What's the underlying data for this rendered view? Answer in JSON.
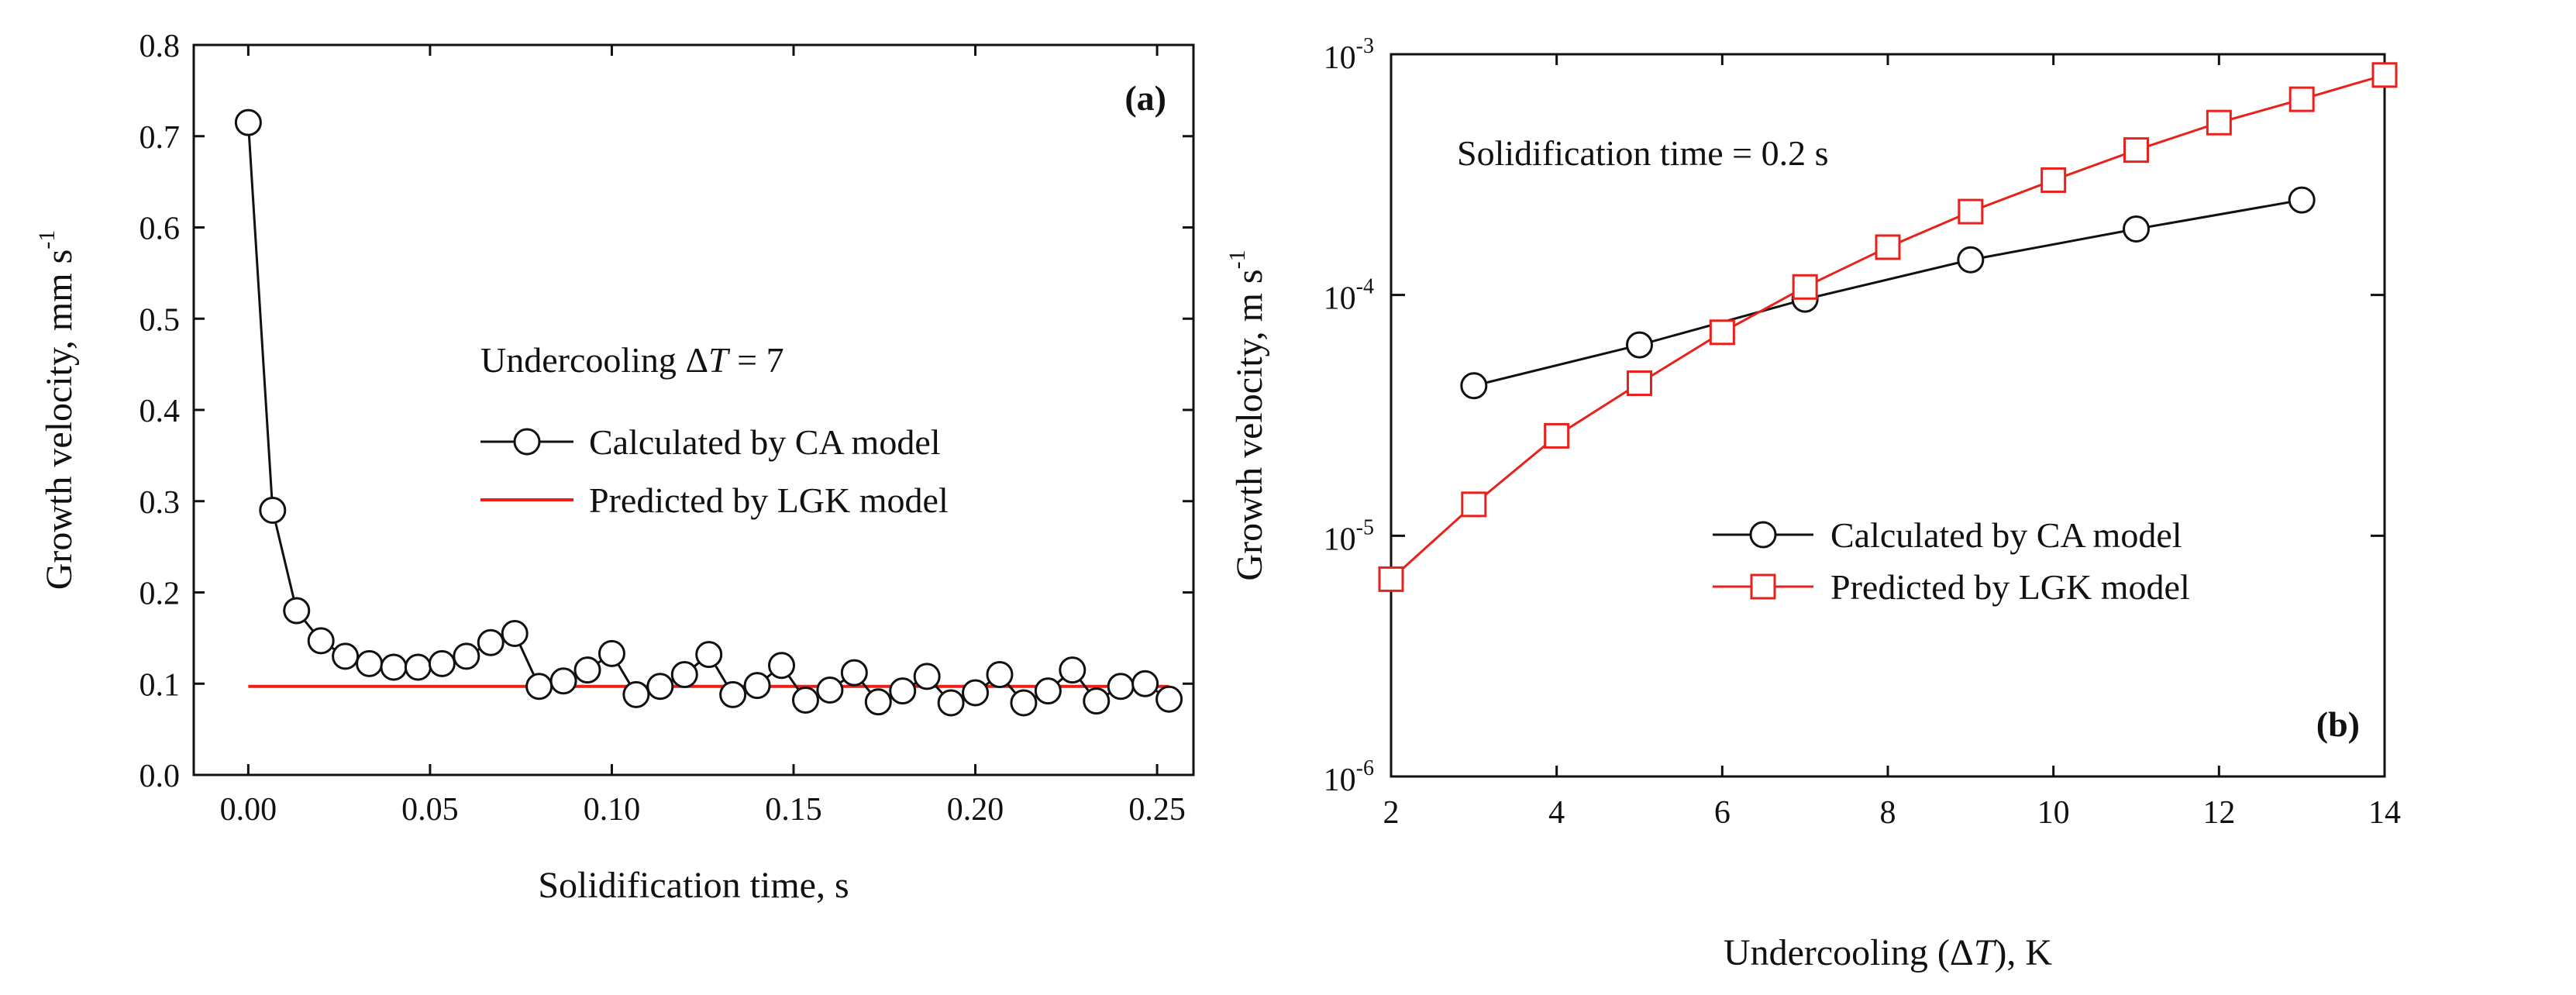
{
  "chart_data": [
    {
      "panel": "(a)",
      "type": "line",
      "xlabel": "Solidification time, s",
      "ylabel": "Growth velocity, mm s",
      "ylabel_sup": "-1",
      "xlim": [
        -0.015,
        0.26
      ],
      "ylim": [
        0.0,
        0.8
      ],
      "xticks": [
        0.0,
        0.05,
        0.1,
        0.15,
        0.2,
        0.25
      ],
      "xtick_labels": [
        "0.00",
        "0.05",
        "0.10",
        "0.15",
        "0.20",
        "0.25"
      ],
      "yticks": [
        0.0,
        0.1,
        0.2,
        0.3,
        0.4,
        0.5,
        0.6,
        0.7,
        0.8
      ],
      "ytick_labels": [
        "0.0",
        "0.1",
        "0.2",
        "0.3",
        "0.4",
        "0.5",
        "0.6",
        "0.7",
        "0.8"
      ],
      "annotation": {
        "prefix": "Undercooling ",
        "delta": "Δ",
        "var": "T",
        "suffix": " = 7"
      },
      "legend_position": "upper-middle",
      "grid": false,
      "series": [
        {
          "name": "Calculated by CA model",
          "color": "#111111",
          "marker": "circle",
          "x": [
            0.0,
            0.0067,
            0.0133,
            0.02,
            0.0267,
            0.0333,
            0.04,
            0.0467,
            0.0533,
            0.06,
            0.0667,
            0.0733,
            0.08,
            0.0867,
            0.0933,
            0.1,
            0.1067,
            0.1133,
            0.12,
            0.1267,
            0.1333,
            0.14,
            0.1467,
            0.1533,
            0.16,
            0.1667,
            0.1733,
            0.18,
            0.1867,
            0.1933,
            0.2,
            0.2067,
            0.2133,
            0.22,
            0.2267,
            0.2333,
            0.24,
            0.2467,
            0.2533
          ],
          "values": [
            0.715,
            0.29,
            0.18,
            0.147,
            0.13,
            0.122,
            0.118,
            0.118,
            0.122,
            0.13,
            0.145,
            0.155,
            0.097,
            0.103,
            0.115,
            0.133,
            0.088,
            0.097,
            0.11,
            0.132,
            0.088,
            0.098,
            0.12,
            0.082,
            0.093,
            0.112,
            0.08,
            0.092,
            0.108,
            0.079,
            0.09,
            0.11,
            0.079,
            0.092,
            0.115,
            0.081,
            0.097,
            0.1,
            0.083
          ]
        },
        {
          "name": "Predicted by LGK model",
          "color": "#e8211c",
          "marker": "none",
          "x": [
            0.0,
            0.2533
          ],
          "values": [
            0.097,
            0.097
          ]
        }
      ]
    },
    {
      "panel": "(b)",
      "type": "line",
      "xlabel": "Undercooling (ΔT), K",
      "xlabel_parts": {
        "text": "Undercooling ",
        "open": "(",
        "delta": "Δ",
        "var": "T",
        "close": ")",
        "unit": ", K"
      },
      "ylabel": "Growth velocity, m s",
      "ylabel_sup": "-1",
      "yscale": "log",
      "xlim": [
        2,
        14
      ],
      "ylim": [
        1e-06,
        0.001
      ],
      "xticks": [
        2,
        4,
        6,
        8,
        10,
        12,
        14
      ],
      "xtick_labels": [
        "2",
        "4",
        "6",
        "8",
        "10",
        "12",
        "14"
      ],
      "yticks": [
        {
          "value": 1e-06,
          "base": "10",
          "exp": "-6"
        },
        {
          "value": 1e-05,
          "base": "10",
          "exp": "-5"
        },
        {
          "value": 0.0001,
          "base": "10",
          "exp": "-4"
        },
        {
          "value": 0.001,
          "base": "10",
          "exp": "-3"
        }
      ],
      "annotation": "Solidification time = 0.2 s",
      "legend_position": "lower-middle",
      "grid": false,
      "series": [
        {
          "name": "Calculated by CA model",
          "color": "#111111",
          "marker": "circle",
          "x": [
            3,
            5,
            7,
            9,
            11,
            13
          ],
          "values": [
            4.2e-05,
            6.2e-05,
            9.6e-05,
            0.00014,
            0.000188,
            0.000248
          ]
        },
        {
          "name": "Predicted by LGK model",
          "color": "#e8211c",
          "marker": "square",
          "x": [
            2,
            3,
            4,
            5,
            6,
            7,
            8,
            9,
            10,
            11,
            12,
            13,
            14
          ],
          "values": [
            6.6e-06,
            1.35e-05,
            2.6e-05,
            4.3e-05,
            7e-05,
            0.000108,
            0.000158,
            0.000222,
            0.0003,
            0.0004,
            0.00052,
            0.00065,
            0.00082
          ]
        }
      ]
    }
  ]
}
